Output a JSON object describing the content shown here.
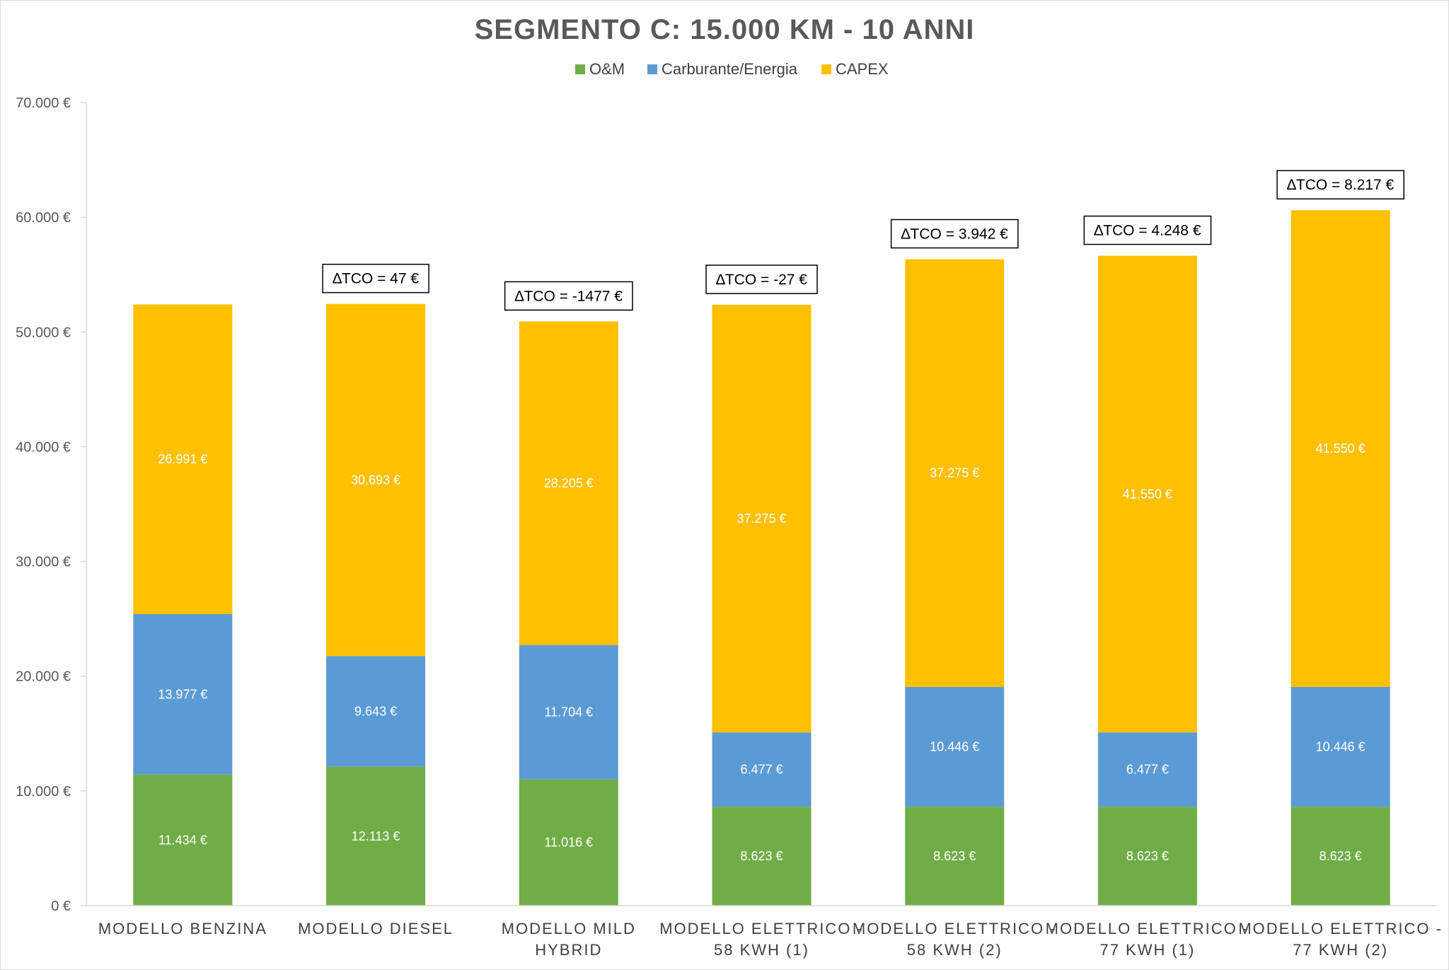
{
  "chart_data": {
    "type": "bar",
    "stacked": true,
    "title": "SEGMENTO C: 15.000 KM - 10 ANNI",
    "xlabel": "",
    "ylabel": "",
    "ylim": [
      0,
      70000
    ],
    "yticks": [
      0,
      10000,
      20000,
      30000,
      40000,
      50000,
      60000,
      70000
    ],
    "ytick_labels": [
      "0 €",
      "10.000 €",
      "20.000 €",
      "30.000 €",
      "40.000 €",
      "50.000 €",
      "60.000 €",
      "70.000 €"
    ],
    "grid": false,
    "legend_position": "top",
    "categories": [
      [
        "MODELLO BENZINA"
      ],
      [
        "MODELLO DIESEL"
      ],
      [
        "MODELLO MILD",
        "HYBRID"
      ],
      [
        "MODELLO ELETTRICO -",
        "58 KWH (1)"
      ],
      [
        "MODELLO ELETTRICO -",
        "58 KWH (2)"
      ],
      [
        "MODELLO ELETTRICO -",
        "77 KWH (1)"
      ],
      [
        "MODELLO ELETTRICO -",
        "77 KWH (2)"
      ]
    ],
    "series": [
      {
        "name": "O&M",
        "color": "#70ad47",
        "values": [
          11434,
          12113,
          11016,
          8623,
          8623,
          8623,
          8623
        ],
        "labels": [
          "11.434 €",
          "12.113 €",
          "11.016 €",
          "8.623 €",
          "8.623 €",
          "8.623 €",
          "8.623 €"
        ]
      },
      {
        "name": "Carburante/Energia",
        "color": "#5b9bd5",
        "values": [
          13977,
          9643,
          11704,
          6477,
          10446,
          6477,
          10446
        ],
        "labels": [
          "13.977 €",
          "9.643 €",
          "11.704 €",
          "6.477 €",
          "10.446 €",
          "6.477 €",
          "10.446 €"
        ]
      },
      {
        "name": "CAPEX",
        "color": "#ffc000",
        "values": [
          26991,
          30693,
          28205,
          37275,
          37275,
          41550,
          41550
        ],
        "labels": [
          "26.991 €",
          "30.693 €",
          "28.205 €",
          "37.275 €",
          "37.275 €",
          "41.550 €",
          "41.550 €"
        ]
      }
    ],
    "annotations": [
      null,
      "∆TCO = 47 €",
      "∆TCO = -1477 €",
      "∆TCO = -27 €",
      "∆TCO = 3.942 €",
      "∆TCO = 4.248 €",
      "∆TCO = 8.217 €"
    ]
  }
}
